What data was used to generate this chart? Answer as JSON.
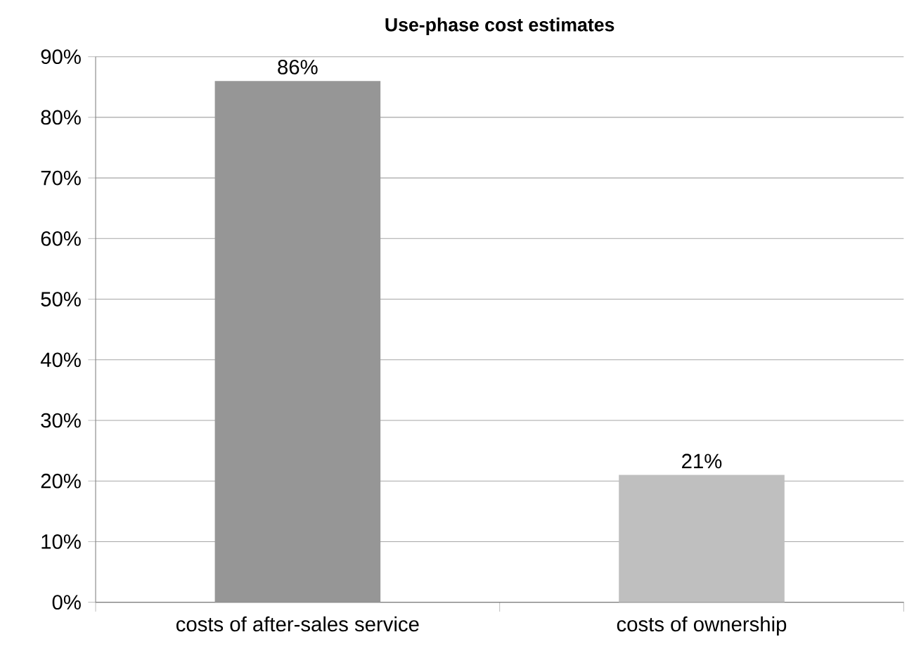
{
  "chart_data": {
    "type": "bar",
    "title": "Use-phase cost estimates",
    "categories": [
      "costs of after-sales service",
      "costs of ownership"
    ],
    "values": [
      86,
      21
    ],
    "colors": [
      "#969696",
      "#bfbfbf"
    ],
    "value_labels": [
      "86%",
      "21%"
    ],
    "ylim": [
      0,
      90
    ],
    "yticks": [
      {
        "value": 0,
        "label": "0%"
      },
      {
        "value": 10,
        "label": "10%"
      },
      {
        "value": 20,
        "label": "20%"
      },
      {
        "value": 30,
        "label": "30%"
      },
      {
        "value": 40,
        "label": "40%"
      },
      {
        "value": 50,
        "label": "50%"
      },
      {
        "value": 60,
        "label": "60%"
      },
      {
        "value": 70,
        "label": "70%"
      },
      {
        "value": 80,
        "label": "80%"
      },
      {
        "value": 90,
        "label": "90%"
      }
    ],
    "grid": "y"
  }
}
